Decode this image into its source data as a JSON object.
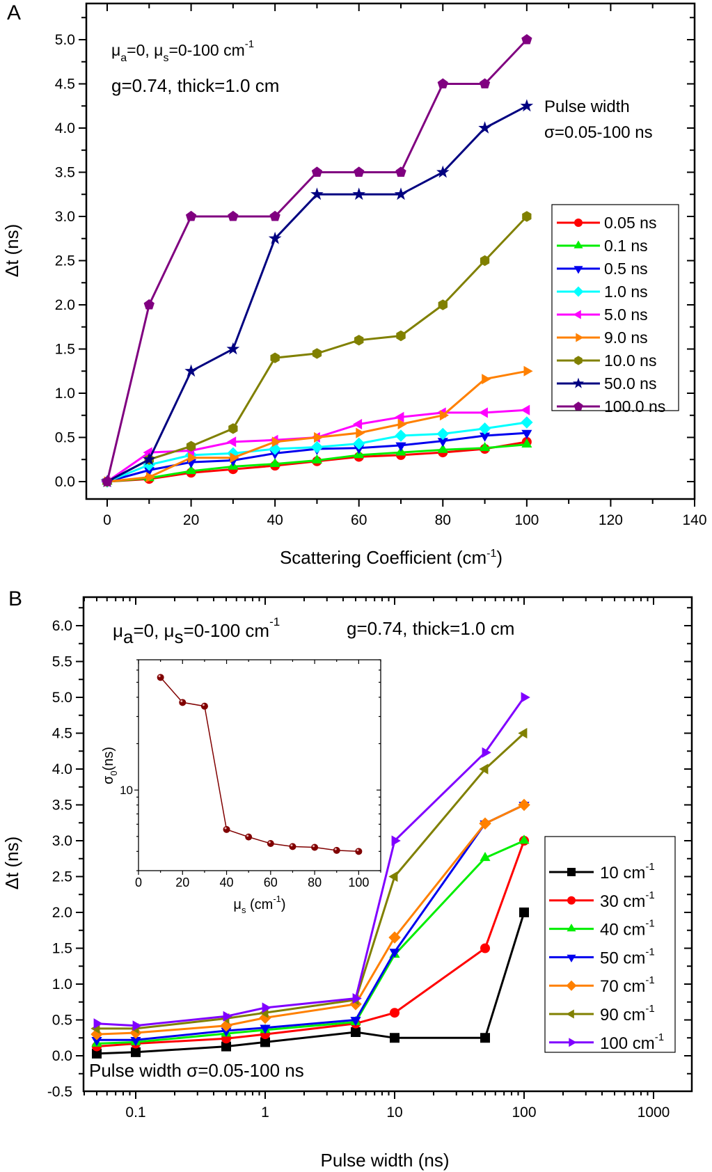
{
  "chart_data": [
    {
      "panel_label": "A",
      "type": "line",
      "xlabel": "Scattering Coefficient (cm",
      "xlabel_sup": "-1",
      "xlabel_end": ")",
      "ylabel": "Δt (ns)",
      "xlim": [
        -2,
        140
      ],
      "ylim": [
        -0.1,
        5.25
      ],
      "xticks": [
        0,
        20,
        40,
        60,
        80,
        100,
        120,
        140
      ],
      "yticks": [
        0.0,
        0.5,
        1.0,
        1.5,
        2.0,
        2.5,
        3.0,
        3.5,
        4.0,
        4.5,
        5.0
      ],
      "ytick_labels": [
        "0.0",
        "0.5",
        "1.0",
        "1.5",
        "2.0",
        "2.5",
        "3.0",
        "3.5",
        "4.0",
        "4.5",
        "5.0"
      ],
      "annotations": {
        "line1": {
          "mu_a": "μ",
          "sub_a": "a",
          "mid": "=0, μ",
          "sub_s": "s",
          "rest": "=0-100 cm",
          "sup": "-1"
        },
        "line2": "g=0.74, thick=1.0 cm",
        "pulse1": "Pulse width",
        "pulse2": "σ=0.05-100 ns"
      },
      "legend_position": "right",
      "x": [
        0,
        10,
        20,
        30,
        40,
        50,
        60,
        70,
        80,
        90,
        100
      ],
      "series": [
        {
          "name": "0.05 ns",
          "color": "#ff0000",
          "marker": "circle",
          "values": [
            0,
            0.03,
            0.1,
            0.14,
            0.18,
            0.23,
            0.28,
            0.3,
            0.33,
            0.37,
            0.45
          ]
        },
        {
          "name": "0.1 ns",
          "color": "#00ee00",
          "marker": "triangle-up",
          "values": [
            0,
            0.04,
            0.12,
            0.17,
            0.2,
            0.24,
            0.3,
            0.33,
            0.36,
            0.38,
            0.42
          ]
        },
        {
          "name": "0.5 ns",
          "color": "#0000ee",
          "marker": "triangle-down",
          "values": [
            0,
            0.13,
            0.22,
            0.24,
            0.32,
            0.37,
            0.38,
            0.41,
            0.46,
            0.52,
            0.55
          ]
        },
        {
          "name": "1.0 ns",
          "color": "#00ffff",
          "marker": "diamond",
          "values": [
            0,
            0.19,
            0.3,
            0.32,
            0.37,
            0.39,
            0.43,
            0.52,
            0.54,
            0.6,
            0.67
          ]
        },
        {
          "name": "5.0 ns",
          "color": "#ff00ff",
          "marker": "triangle-left",
          "values": [
            0,
            0.33,
            0.35,
            0.45,
            0.47,
            0.5,
            0.65,
            0.73,
            0.78,
            0.78,
            0.81
          ]
        },
        {
          "name": "9.0 ns",
          "color": "#ff8000",
          "marker": "triangle-right",
          "values": [
            0,
            0.05,
            0.27,
            0.27,
            0.45,
            0.5,
            0.55,
            0.65,
            0.75,
            1.16,
            1.25
          ]
        },
        {
          "name": "10.0 ns",
          "color": "#808000",
          "marker": "hexagon",
          "values": [
            0,
            0.25,
            0.4,
            0.6,
            1.4,
            1.45,
            1.6,
            1.65,
            2.0,
            2.5,
            3.0
          ]
        },
        {
          "name": "50.0 ns",
          "color": "#000080",
          "marker": "star",
          "values": [
            0,
            0.25,
            1.25,
            1.5,
            2.75,
            3.25,
            3.25,
            3.25,
            3.5,
            4.0,
            4.25
          ]
        },
        {
          "name": "100.0 ns",
          "color": "#800080",
          "marker": "pentagon",
          "values": [
            0,
            2.0,
            3.0,
            3.0,
            3.0,
            3.5,
            3.5,
            3.5,
            4.5,
            4.5,
            5.0
          ]
        }
      ]
    },
    {
      "panel_label": "B",
      "type": "line",
      "xscale": "log",
      "xlabel": "Pulse width (ns)",
      "ylabel": "Δt (ns)",
      "xlim": [
        0.04,
        2000
      ],
      "ylim": [
        -0.5,
        6.3
      ],
      "xticks": [
        0.1,
        1,
        10,
        100,
        1000
      ],
      "xtick_labels": [
        "0.1",
        "1",
        "10",
        "100",
        "1000"
      ],
      "yticks": [
        -0.5,
        0.0,
        0.5,
        1.0,
        1.5,
        2.0,
        2.5,
        3.0,
        3.5,
        4.0,
        4.5,
        5.0,
        5.5,
        6.0
      ],
      "ytick_labels": [
        "-0.5",
        "0.0",
        "0.5",
        "1.0",
        "1.5",
        "2.0",
        "2.5",
        "3.0",
        "3.5",
        "4.0",
        "4.5",
        "5.0",
        "5.5",
        "6.0"
      ],
      "annotations": {
        "line1": {
          "mu_a": "μ",
          "sub_a": "a",
          "mid": "=0, μ",
          "sub_s": "s",
          "rest": "=0-100 cm",
          "sup": "-1"
        },
        "line2": "g=0.74, thick=1.0 cm",
        "pulse": "Pulse width σ=0.05-100 ns"
      },
      "legend_position": "bottom-right",
      "x": [
        0.05,
        0.1,
        0.5,
        1,
        5,
        10,
        50,
        100
      ],
      "series": [
        {
          "name": "10 cm",
          "sup": "-1",
          "color": "#000000",
          "marker": "square",
          "values": [
            0.03,
            0.05,
            0.13,
            0.19,
            0.33,
            0.25,
            0.25,
            2.0
          ]
        },
        {
          "name": "30 cm",
          "sup": "-1",
          "color": "#ff0000",
          "marker": "circle",
          "values": [
            0.13,
            0.17,
            0.24,
            0.3,
            0.45,
            0.6,
            1.5,
            3.0
          ]
        },
        {
          "name": "40 cm",
          "sup": "-1",
          "color": "#00ee00",
          "marker": "triangle-up",
          "values": [
            0.17,
            0.19,
            0.31,
            0.36,
            0.47,
            1.41,
            2.76,
            3.0
          ]
        },
        {
          "name": "50 cm",
          "sup": "-1",
          "color": "#0000ee",
          "marker": "triangle-down",
          "values": [
            0.22,
            0.22,
            0.35,
            0.39,
            0.5,
            1.45,
            3.24,
            3.5
          ]
        },
        {
          "name": "70 cm",
          "sup": "-1",
          "color": "#ff8000",
          "marker": "diamond",
          "values": [
            0.3,
            0.32,
            0.42,
            0.53,
            0.72,
            1.65,
            3.24,
            3.5
          ]
        },
        {
          "name": "90 cm",
          "sup": "-1",
          "color": "#808000",
          "marker": "triangle-left",
          "values": [
            0.38,
            0.38,
            0.52,
            0.6,
            0.78,
            2.5,
            4.0,
            4.5
          ]
        },
        {
          "name": "100 cm",
          "sup": "-1",
          "color": "#8000ff",
          "marker": "triangle-right",
          "values": [
            0.45,
            0.42,
            0.55,
            0.67,
            0.8,
            3.0,
            4.23,
            5.0
          ]
        }
      ],
      "inset": {
        "type": "scatter-line",
        "yscale": "log",
        "xlabel": "μ",
        "xlabel_sub": "s",
        "xlabel_rest": " (cm",
        "xlabel_sup": "-1",
        "xlabel_end": ")",
        "ylabel": "σ",
        "ylabel_sub": "0",
        "ylabel_rest": "(ns)",
        "xlim": [
          0,
          110
        ],
        "ylim": [
          3,
          70
        ],
        "xticks": [
          0,
          20,
          40,
          60,
          80,
          100
        ],
        "yticks_labeled": [
          10
        ],
        "color": "#800000",
        "x": [
          10,
          20,
          30,
          40,
          50,
          60,
          70,
          80,
          90,
          100
        ],
        "values": [
          53.8,
          37.0,
          35.0,
          5.55,
          4.96,
          4.5,
          4.3,
          4.25,
          4.06,
          4.0
        ]
      }
    }
  ]
}
